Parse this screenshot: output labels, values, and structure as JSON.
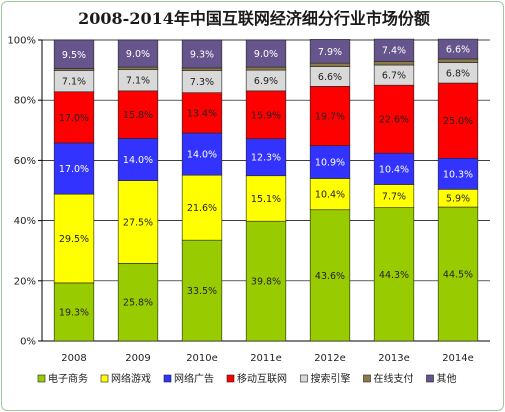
{
  "chart_data": {
    "type": "bar",
    "stacked": true,
    "title": "2008-2014年中国互联网经济细分行业市场份额",
    "categories": [
      "2008",
      "2009",
      "2010e",
      "2011e",
      "2012e",
      "2013e",
      "2014e"
    ],
    "ylim": [
      0,
      100
    ],
    "yticks": [
      "0%",
      "20%",
      "40%",
      "60%",
      "80%",
      "100%"
    ],
    "grid": true,
    "legend_position": "bottom",
    "series": [
      {
        "name": "电子商务",
        "color": "#99cc00",
        "values": [
          19.3,
          25.8,
          33.5,
          39.8,
          43.6,
          44.3,
          44.5
        ],
        "labels": [
          "19.3%",
          "25.8%",
          "33.5%",
          "39.8%",
          "43.6%",
          "44.3%",
          "44.5%"
        ]
      },
      {
        "name": "网络游戏",
        "color": "#ffff00",
        "values": [
          29.5,
          27.5,
          21.6,
          15.1,
          10.4,
          7.7,
          5.9
        ],
        "labels": [
          "29.5%",
          "27.5%",
          "21.6%",
          "15.1%",
          "10.4%",
          "7.7%",
          "5.9%"
        ]
      },
      {
        "name": "网络广告",
        "color": "#3333ff",
        "values": [
          17.0,
          14.0,
          14.0,
          12.3,
          10.9,
          10.4,
          10.3
        ],
        "labels": [
          "17.0%",
          "14.0%",
          "14.0%",
          "12.3%",
          "10.9%",
          "10.4%",
          "10.3%"
        ]
      },
      {
        "name": "移动互联网",
        "color": "#ff0000",
        "values": [
          17.0,
          15.8,
          13.4,
          15.9,
          19.7,
          22.6,
          25.0
        ],
        "labels": [
          "17.0%",
          "15.8%",
          "13.4%",
          "15.9%",
          "19.7%",
          "22.6%",
          "25.0%"
        ]
      },
      {
        "name": "搜索引擎",
        "color": "#d9d9d9",
        "values": [
          7.1,
          7.1,
          7.3,
          6.9,
          6.6,
          6.7,
          6.8
        ],
        "labels": [
          "7.1%",
          "7.1%",
          "7.3%",
          "6.9%",
          "6.6%",
          "6.7%",
          "6.8%"
        ]
      },
      {
        "name": "在线支付",
        "color": "#8c7a4a",
        "values": [
          0.6,
          0.8,
          0.9,
          1.0,
          1.1,
          1.2,
          1.2
        ],
        "labels": []
      },
      {
        "name": "其他",
        "color": "#66558c",
        "values": [
          9.5,
          9.0,
          9.3,
          9.0,
          7.9,
          7.4,
          6.6
        ],
        "labels": [
          "9.5%",
          "9.0%",
          "9.3%",
          "9.0%",
          "7.9%",
          "7.4%",
          "6.6%"
        ]
      }
    ]
  }
}
